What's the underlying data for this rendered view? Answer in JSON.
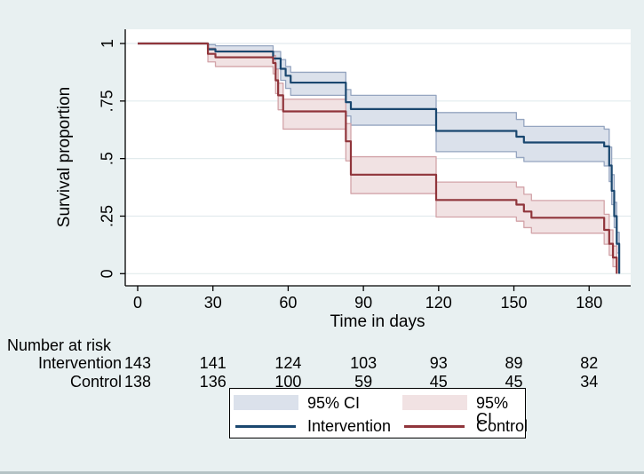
{
  "chart_data": {
    "type": "line",
    "subtype": "kaplan-meier-step-with-ci",
    "title": "",
    "xlabel": "Time in days",
    "ylabel": "Survival proportion",
    "x_ticks": [
      0,
      30,
      60,
      90,
      120,
      150,
      180
    ],
    "y_ticks": [
      0,
      0.25,
      0.5,
      0.75,
      1
    ],
    "y_tick_labels": [
      "0",
      ".25",
      ".5",
      ".75",
      "1"
    ],
    "xlim": [
      0,
      195
    ],
    "ylim": [
      0,
      1
    ],
    "grid": "horizontal",
    "background_color": "#e8f0f1",
    "plot_background_color": "#ffffff",
    "gridline_color": "#e2ebed",
    "series": [
      {
        "name": "Intervention",
        "line_color": "#1a476f",
        "ci_label": "95% CI",
        "ci_fill": "#dbe1eb",
        "ci_edge": "#95a5c0",
        "steps": [
          [
            0,
            1.0,
            null,
            null
          ],
          [
            28,
            0.975,
            0.945,
            0.995
          ],
          [
            31,
            0.965,
            0.93,
            0.99
          ],
          [
            54,
            0.935,
            0.89,
            0.965
          ],
          [
            57,
            0.89,
            0.84,
            0.93
          ],
          [
            59,
            0.86,
            0.805,
            0.9
          ],
          [
            61,
            0.83,
            0.775,
            0.875
          ],
          [
            83,
            0.745,
            0.685,
            0.8
          ],
          [
            85,
            0.715,
            0.645,
            0.775
          ],
          [
            119,
            0.62,
            0.53,
            0.7
          ],
          [
            151,
            0.595,
            0.505,
            0.67
          ],
          [
            154,
            0.57,
            0.487,
            0.64
          ],
          [
            186,
            0.553,
            0.468,
            0.628
          ],
          [
            188,
            0.47,
            0.4,
            0.55
          ],
          [
            189,
            0.36,
            0.3,
            0.43
          ],
          [
            190,
            0.25,
            0.2,
            0.31
          ],
          [
            191,
            0.13,
            0.09,
            0.18
          ],
          [
            192,
            0.0,
            0.0,
            0.01
          ]
        ]
      },
      {
        "name": "Control",
        "line_color": "#90353b",
        "ci_label": "95% CI",
        "ci_fill": "#f1e2e3",
        "ci_edge": "#d2a3a8",
        "steps": [
          [
            0,
            1.0,
            null,
            null
          ],
          [
            28,
            0.955,
            0.92,
            0.98
          ],
          [
            31,
            0.94,
            0.9,
            0.968
          ],
          [
            54,
            0.915,
            0.868,
            0.948
          ],
          [
            55,
            0.84,
            0.782,
            0.888
          ],
          [
            56,
            0.775,
            0.712,
            0.828
          ],
          [
            58,
            0.705,
            0.628,
            0.758
          ],
          [
            83,
            0.575,
            0.49,
            0.652
          ],
          [
            85,
            0.43,
            0.348,
            0.508
          ],
          [
            119,
            0.32,
            0.246,
            0.398
          ],
          [
            151,
            0.3,
            0.228,
            0.376
          ],
          [
            154,
            0.27,
            0.2,
            0.345
          ],
          [
            157,
            0.243,
            0.176,
            0.318
          ],
          [
            186,
            0.19,
            0.128,
            0.258
          ],
          [
            188,
            0.13,
            0.08,
            0.19
          ],
          [
            189.5,
            0.07,
            0.03,
            0.12
          ],
          [
            191,
            0.0,
            0.0,
            0.01
          ]
        ]
      }
    ],
    "legend": [
      {
        "type": "band",
        "series": "Intervention",
        "label": "95% CI"
      },
      {
        "type": "band",
        "series": "Control",
        "label": "95% CI"
      },
      {
        "type": "line",
        "series": "Intervention",
        "label": "Intervention"
      },
      {
        "type": "line",
        "series": "Control",
        "label": "Control"
      }
    ],
    "risk_table": {
      "title": "Number at risk",
      "days": [
        0,
        30,
        60,
        90,
        120,
        150,
        180
      ],
      "rows": [
        {
          "label": "Intervention",
          "counts": [
            143,
            141,
            124,
            103,
            93,
            89,
            82
          ]
        },
        {
          "label": "Control",
          "counts": [
            138,
            136,
            100,
            59,
            45,
            45,
            34
          ]
        }
      ]
    }
  }
}
